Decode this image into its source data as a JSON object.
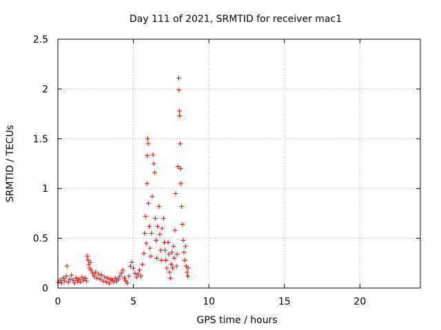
{
  "chart_data": {
    "type": "scatter",
    "title": "Day 111 of 2021, SRMTID for receiver mac1",
    "xlabel": "GPS time / hours",
    "ylabel": "SRMTID / TECUs",
    "xlim": [
      0,
      24
    ],
    "ylim": [
      0,
      2.5
    ],
    "xticks": [
      0,
      5,
      10,
      15,
      20
    ],
    "yticks": [
      0,
      0.5,
      1,
      1.5,
      2,
      2.5
    ],
    "xtick_labels": [
      "0",
      "5",
      "10",
      "15",
      "20"
    ],
    "ytick_labels": [
      "0",
      "0.5",
      "1",
      "1.5",
      "2",
      "2.5"
    ],
    "grid": true,
    "marker": "+",
    "series": [
      {
        "name": "SRMTID",
        "color": "#e00000",
        "points": [
          [
            0.05,
            0.06
          ],
          [
            0.15,
            0.08
          ],
          [
            0.25,
            0.05
          ],
          [
            0.35,
            0.1
          ],
          [
            0.45,
            0.07
          ],
          [
            0.55,
            0.12
          ],
          [
            0.6,
            0.22
          ],
          [
            0.7,
            0.06
          ],
          [
            0.8,
            0.09
          ],
          [
            0.9,
            0.13
          ],
          [
            1.0,
            0.08
          ],
          [
            1.1,
            0.05
          ],
          [
            1.2,
            0.1
          ],
          [
            1.3,
            0.07
          ],
          [
            1.4,
            0.09
          ],
          [
            1.5,
            0.06
          ],
          [
            1.6,
            0.11
          ],
          [
            1.7,
            0.08
          ],
          [
            1.8,
            0.1
          ],
          [
            1.9,
            0.07
          ],
          [
            1.95,
            0.32
          ],
          [
            2.0,
            0.28
          ],
          [
            2.05,
            0.24
          ],
          [
            2.1,
            0.2
          ],
          [
            2.15,
            0.26
          ],
          [
            2.2,
            0.18
          ],
          [
            2.3,
            0.15
          ],
          [
            2.4,
            0.12
          ],
          [
            2.5,
            0.16
          ],
          [
            2.6,
            0.1
          ],
          [
            2.7,
            0.14
          ],
          [
            2.8,
            0.09
          ],
          [
            2.9,
            0.13
          ],
          [
            3.0,
            0.07
          ],
          [
            3.1,
            0.11
          ],
          [
            3.2,
            0.06
          ],
          [
            3.3,
            0.1
          ],
          [
            3.4,
            0.05
          ],
          [
            3.5,
            0.09
          ],
          [
            3.6,
            0.08
          ],
          [
            3.7,
            0.06
          ],
          [
            3.8,
            0.1
          ],
          [
            3.9,
            0.07
          ],
          [
            4.0,
            0.09
          ],
          [
            4.1,
            0.12
          ],
          [
            4.2,
            0.15
          ],
          [
            4.3,
            0.18
          ],
          [
            4.4,
            0.1
          ],
          [
            4.5,
            0.07
          ],
          [
            4.6,
            0.05
          ],
          [
            4.7,
            0.12
          ],
          [
            4.8,
            0.22
          ],
          [
            4.9,
            0.26
          ],
          [
            5.0,
            0.2
          ],
          [
            5.1,
            0.15
          ],
          [
            5.2,
            0.11
          ],
          [
            5.3,
            0.14
          ],
          [
            5.4,
            0.18
          ],
          [
            5.5,
            0.12
          ],
          [
            5.6,
            0.24
          ],
          [
            5.7,
            0.35
          ],
          [
            5.75,
            0.55
          ],
          [
            5.8,
            0.72
          ],
          [
            5.85,
            0.45
          ],
          [
            5.9,
            1.05
          ],
          [
            5.92,
            1.33
          ],
          [
            5.95,
            1.5
          ],
          [
            5.98,
            1.45
          ],
          [
            6.0,
            0.85
          ],
          [
            6.05,
            0.62
          ],
          [
            6.1,
            0.4
          ],
          [
            6.15,
            0.32
          ],
          [
            6.2,
            0.55
          ],
          [
            6.25,
            0.92
          ],
          [
            6.3,
            1.34
          ],
          [
            6.35,
            1.25
          ],
          [
            6.4,
            1.16
          ],
          [
            6.45,
            0.7
          ],
          [
            6.5,
            0.48
          ],
          [
            6.55,
            0.3
          ],
          [
            6.6,
            0.62
          ],
          [
            6.7,
            0.82
          ],
          [
            6.75,
            0.54
          ],
          [
            6.8,
            0.38
          ],
          [
            6.85,
            0.28
          ],
          [
            6.9,
            0.6
          ],
          [
            7.0,
            0.7
          ],
          [
            7.05,
            0.46
          ],
          [
            7.1,
            0.38
          ],
          [
            7.15,
            0.28
          ],
          [
            7.2,
            0.2
          ],
          [
            7.3,
            0.46
          ],
          [
            7.35,
            0.34
          ],
          [
            7.4,
            0.16
          ],
          [
            7.45,
            0.1
          ],
          [
            7.5,
            0.24
          ],
          [
            7.55,
            0.36
          ],
          [
            7.6,
            0.2
          ],
          [
            7.65,
            0.42
          ],
          [
            7.7,
            0.3
          ],
          [
            7.75,
            0.58
          ],
          [
            7.8,
            0.95
          ],
          [
            7.85,
            0.22
          ],
          [
            7.9,
            0.34
          ],
          [
            7.95,
            1.22
          ],
          [
            8.0,
            2.11
          ],
          [
            8.02,
            1.99
          ],
          [
            8.05,
            1.78
          ],
          [
            8.07,
            1.73
          ],
          [
            8.1,
            1.45
          ],
          [
            8.12,
            1.2
          ],
          [
            8.15,
            1.05
          ],
          [
            8.2,
            0.82
          ],
          [
            8.25,
            0.64
          ],
          [
            8.3,
            0.48
          ],
          [
            8.35,
            0.36
          ],
          [
            8.4,
            0.28
          ],
          [
            8.45,
            0.42
          ],
          [
            8.5,
            0.22
          ],
          [
            8.55,
            0.16
          ],
          [
            8.6,
            0.12
          ],
          [
            8.62,
            0.2
          ]
        ]
      }
    ]
  }
}
